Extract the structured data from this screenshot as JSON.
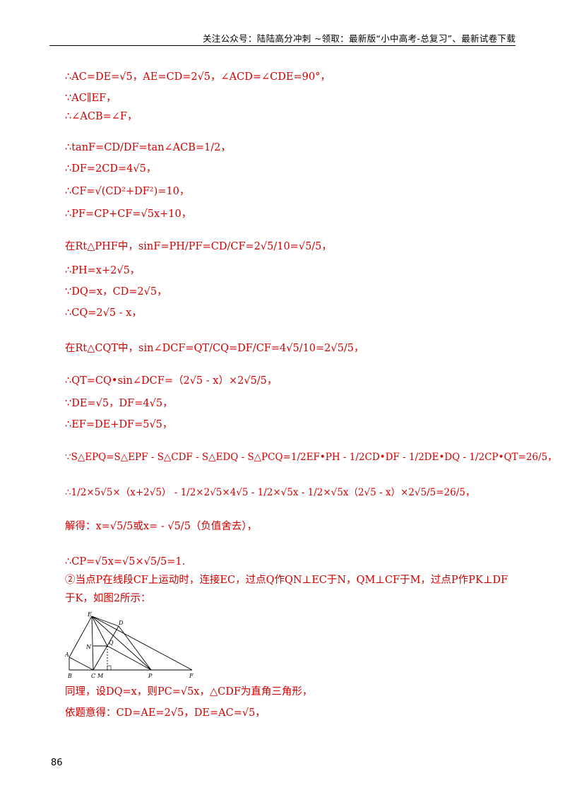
{
  "header": {
    "text": "关注公众号：陆陆高分冲刺   ~领取：最新版“小中高考-总复习”、最新试卷下载"
  },
  "lines": [
    "∴AC=DE=√5，AE=CD=2√5，∠ACD=∠CDE=90°，",
    "∵AC∥EF，",
    "∴∠ACB=∠F，",
    "∴tanF=CD/DF=tan∠ACB=1/2，",
    "∴DF=2CD=4√5，",
    "∴CF=√(CD²+DF²)=10，",
    "∴PF=CP+CF=√5x+10，",
    "在Rt△PHF中，sinF=PH/PF=CD/CF=2√5/10=√5/5，",
    "∴PH=x+2√5，",
    "∵DQ=x，CD=2√5，",
    "∴CQ=2√5 - x，",
    "在Rt△CQT中，sin∠DCF=QT/CQ=DF/CF=4√5/10=2√5/5，",
    "∴QT=CQ•sin∠DCF=（2√5 - x）×2√5/5，",
    "∵DE=√5，DF=4√5，",
    "∴EF=DE+DF=5√5，",
    "∵S△EPQ=S△EPF - S△CDF - S△EDQ - S△PCQ=1/2EF•PH - 1/2CD•DF - 1/2DE•DQ - 1/2CP•QT=26/5，",
    "∴1/2×5√5×（x+2√5） - 1/2×2√5×4√5 - 1/2×√5x - 1/2×√5x（2√5 - x）×2√5/5=26/5，",
    "解得：x=√5/5或x= - √5/5（负值舍去），",
    "∴CP=√5x=√5×√5/5=1.",
    "②当点P在线段CF上运动时，连接EC，过点Q作QN⊥EC于N，QM⊥CF于M，过点P作PK⊥DF",
    "于K，如图2所示：",
    "同理，设DQ=x，则PC=√5x，△CDF为直角三角形，",
    "依题意得：CD=AE=2√5，DE=AC=√5，"
  ],
  "figure": {
    "labels": [
      "E",
      "D",
      "N",
      "Q",
      "A",
      "B",
      "C",
      "M",
      "P",
      "F"
    ]
  },
  "page_number": "86"
}
